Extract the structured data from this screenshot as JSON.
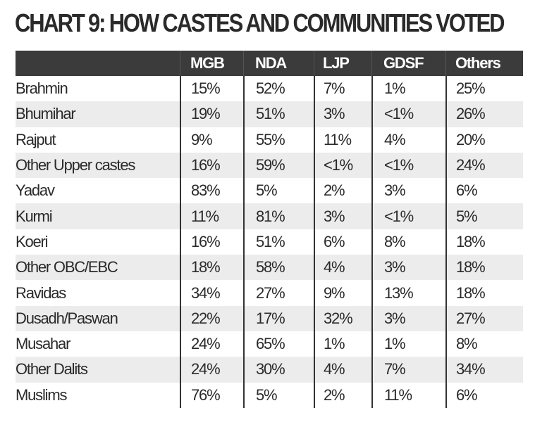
{
  "chart_data": {
    "type": "table",
    "title": "CHART 9: HOW CASTES AND COMMUNITIES VOTED",
    "columns": [
      "",
      "MGB",
      "NDA",
      "LJP",
      "GDSF",
      "Others"
    ],
    "rows": [
      {
        "group": "Brahmin",
        "values": [
          "15%",
          "52%",
          "7%",
          "1%",
          "25%"
        ]
      },
      {
        "group": "Bhumihar",
        "values": [
          "19%",
          "51%",
          "3%",
          "<1%",
          "26%"
        ]
      },
      {
        "group": "Rajput",
        "values": [
          "9%",
          "55%",
          "11%",
          "4%",
          "20%"
        ]
      },
      {
        "group": "Other Upper castes",
        "values": [
          "16%",
          "59%",
          "<1%",
          "<1%",
          "24%"
        ]
      },
      {
        "group": "Yadav",
        "values": [
          "83%",
          "5%",
          "2%",
          "3%",
          "6%"
        ]
      },
      {
        "group": "Kurmi",
        "values": [
          "11%",
          "81%",
          "3%",
          "<1%",
          "5%"
        ]
      },
      {
        "group": "Koeri",
        "values": [
          "16%",
          "51%",
          "6%",
          "8%",
          "18%"
        ]
      },
      {
        "group": "Other OBC/EBC",
        "values": [
          "18%",
          "58%",
          "4%",
          "3%",
          "18%"
        ]
      },
      {
        "group": "Ravidas",
        "values": [
          "34%",
          "27%",
          "9%",
          "13%",
          "18%"
        ]
      },
      {
        "group": "Dusadh/Paswan",
        "values": [
          "22%",
          "17%",
          "32%",
          "3%",
          "27%"
        ]
      },
      {
        "group": "Musahar",
        "values": [
          "24%",
          "65%",
          "1%",
          "1%",
          "8%"
        ]
      },
      {
        "group": "Other Dalits",
        "values": [
          "24%",
          "30%",
          "4%",
          "7%",
          "34%"
        ]
      },
      {
        "group": "Muslims",
        "values": [
          "76%",
          "5%",
          "2%",
          "11%",
          "6%"
        ]
      }
    ]
  }
}
